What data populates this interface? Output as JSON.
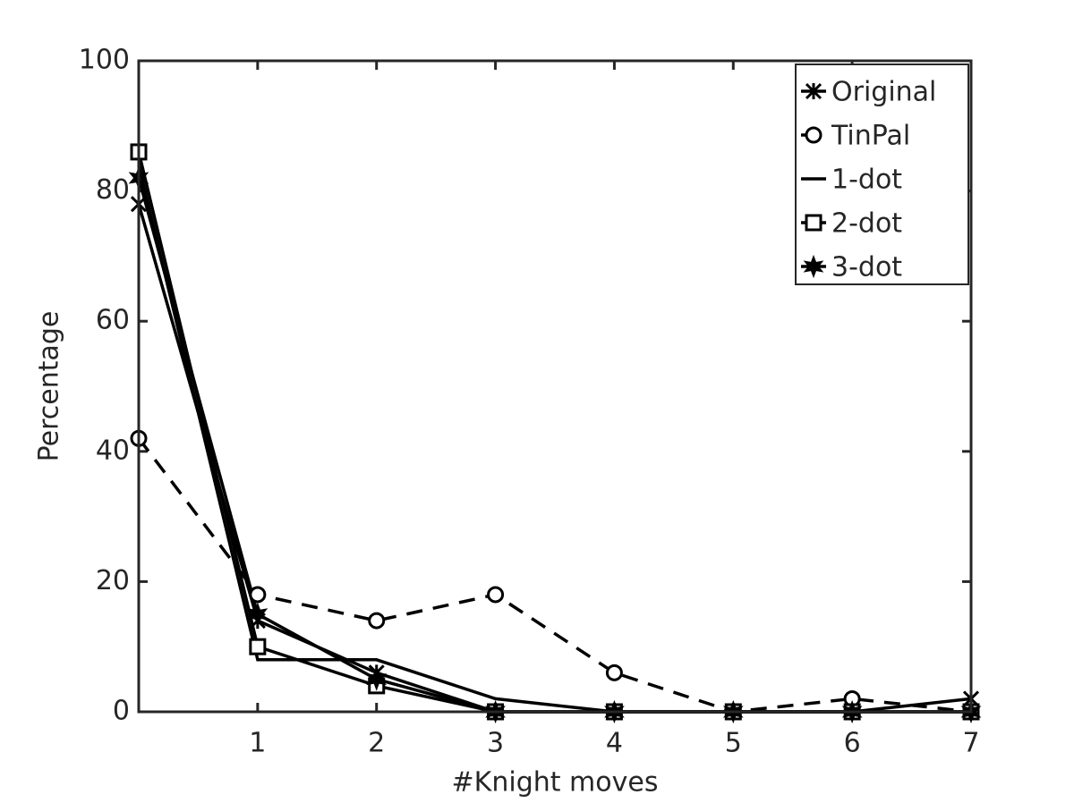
{
  "chart_data": {
    "type": "line",
    "xlabel": "#Knight moves",
    "ylabel": "Percentage",
    "x": [
      0,
      1,
      2,
      3,
      4,
      5,
      6,
      7
    ],
    "xlim": [
      0,
      7
    ],
    "xticks": [
      1,
      2,
      3,
      4,
      5,
      6,
      7
    ],
    "ylim": [
      0,
      100
    ],
    "yticks": [
      0,
      20,
      40,
      60,
      80,
      100
    ],
    "legend": "upper-right",
    "series": [
      {
        "name": "Original",
        "color": "#000000",
        "marker": "x",
        "line_style": "solid",
        "values": [
          78,
          14,
          6,
          0,
          0,
          0,
          0,
          2
        ]
      },
      {
        "name": "TinPal",
        "color": "#000000",
        "marker": "o",
        "line_style": "dashed",
        "values": [
          42,
          18,
          14,
          18,
          6,
          0,
          2,
          0
        ]
      },
      {
        "name": "1-dot",
        "color": "#000000",
        "marker": "none",
        "line_style": "solid",
        "values": [
          84,
          8,
          8,
          2,
          0,
          0,
          0,
          0
        ]
      },
      {
        "name": "2-dot",
        "color": "#000000",
        "marker": "s",
        "line_style": "solid",
        "values": [
          86,
          10,
          4,
          0,
          0,
          0,
          0,
          0
        ]
      },
      {
        "name": "3-dot",
        "color": "#000000",
        "marker": "*",
        "line_style": "solid",
        "values": [
          82,
          15,
          5,
          0,
          0,
          0,
          0,
          0
        ]
      }
    ]
  }
}
